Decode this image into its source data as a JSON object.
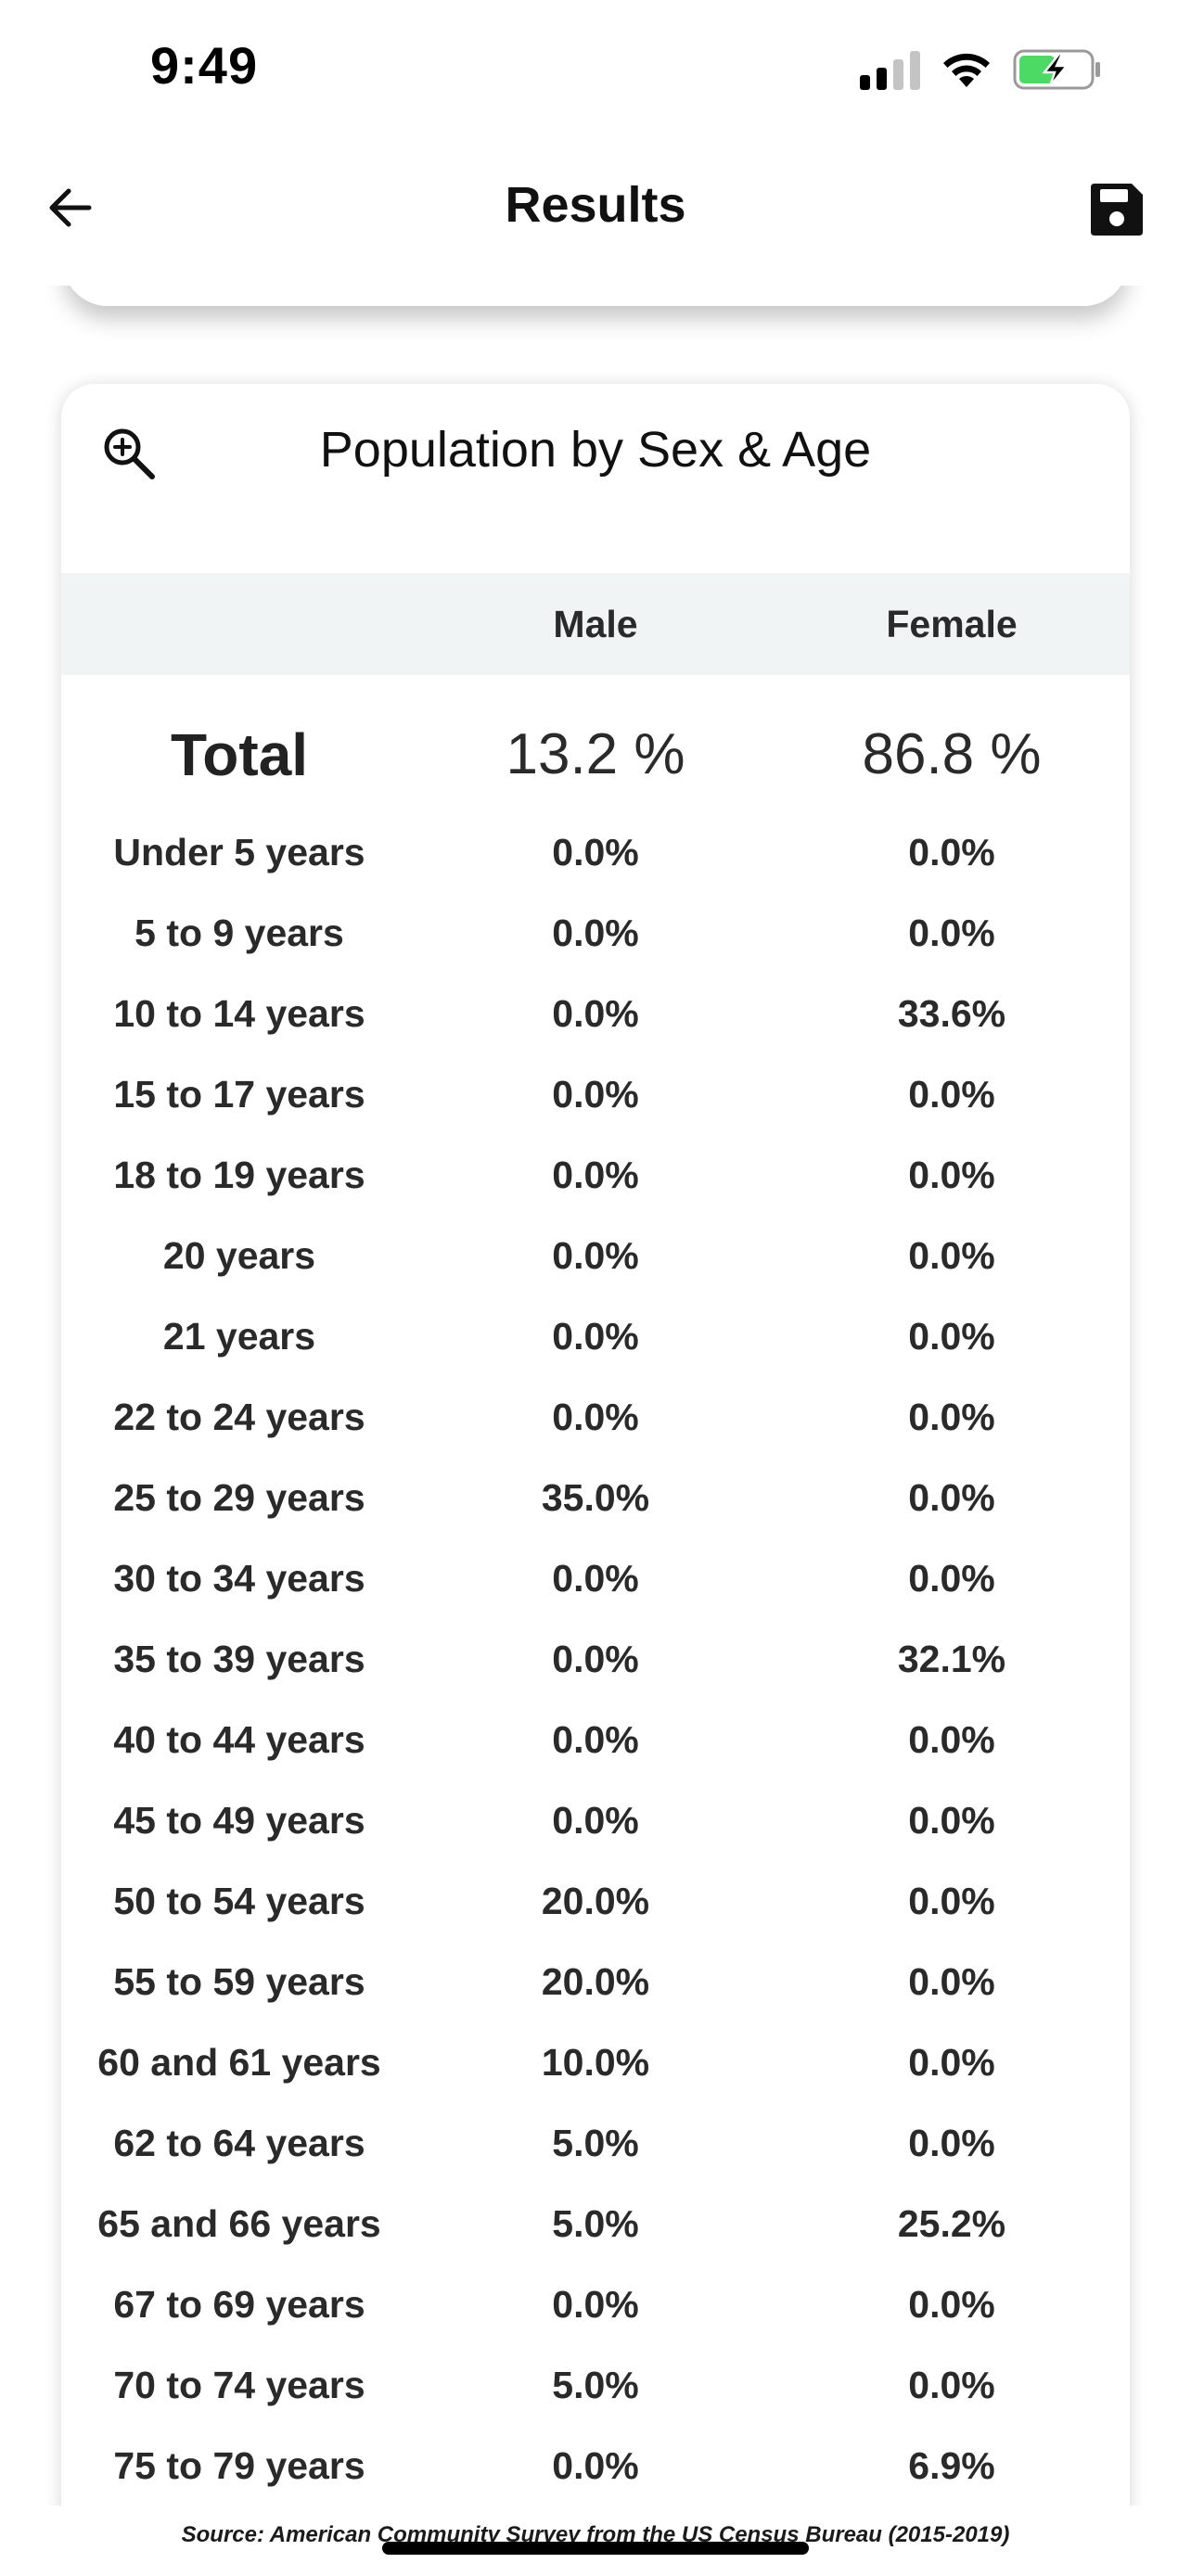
{
  "status_bar": {
    "time": "9:49"
  },
  "header": {
    "title": "Results",
    "back_icon": "arrow-left-icon",
    "save_icon": "floppy-disk-icon"
  },
  "card": {
    "title": "Population by Sex & Age",
    "zoom_icon": "zoom-in-icon",
    "columns": [
      "",
      "Male",
      "Female"
    ],
    "total": {
      "label": "Total",
      "male": "13.2 %",
      "female": "86.8 %"
    },
    "rows": [
      {
        "label": "Under 5 years",
        "male": "0.0%",
        "female": "0.0%"
      },
      {
        "label": "5 to 9 years",
        "male": "0.0%",
        "female": "0.0%"
      },
      {
        "label": "10 to 14 years",
        "male": "0.0%",
        "female": "33.6%"
      },
      {
        "label": "15 to 17 years",
        "male": "0.0%",
        "female": "0.0%"
      },
      {
        "label": "18 to 19 years",
        "male": "0.0%",
        "female": "0.0%"
      },
      {
        "label": "20 years",
        "male": "0.0%",
        "female": "0.0%"
      },
      {
        "label": "21 years",
        "male": "0.0%",
        "female": "0.0%"
      },
      {
        "label": "22 to 24 years",
        "male": "0.0%",
        "female": "0.0%"
      },
      {
        "label": "25 to 29 years",
        "male": "35.0%",
        "female": "0.0%"
      },
      {
        "label": "30 to 34 years",
        "male": "0.0%",
        "female": "0.0%"
      },
      {
        "label": "35 to 39 years",
        "male": "0.0%",
        "female": "32.1%"
      },
      {
        "label": "40 to 44 years",
        "male": "0.0%",
        "female": "0.0%"
      },
      {
        "label": "45 to 49 years",
        "male": "0.0%",
        "female": "0.0%"
      },
      {
        "label": "50 to 54 years",
        "male": "20.0%",
        "female": "0.0%"
      },
      {
        "label": "55 to 59 years",
        "male": "20.0%",
        "female": "0.0%"
      },
      {
        "label": "60 and 61 years",
        "male": "10.0%",
        "female": "0.0%"
      },
      {
        "label": "62 to 64 years",
        "male": "5.0%",
        "female": "0.0%"
      },
      {
        "label": "65 and 66 years",
        "male": "5.0%",
        "female": "25.2%"
      },
      {
        "label": "67 to 69 years",
        "male": "0.0%",
        "female": "0.0%"
      },
      {
        "label": "70 to 74 years",
        "male": "5.0%",
        "female": "0.0%"
      },
      {
        "label": "75 to 79 years",
        "male": "0.0%",
        "female": "6.9%"
      }
    ]
  },
  "footer": {
    "source": "Source: American Community Survey from the US Census Bureau (2015-2019)"
  },
  "colors": {
    "table_header_bg": "#f1f4f5",
    "battery_fill": "#4cd964"
  }
}
